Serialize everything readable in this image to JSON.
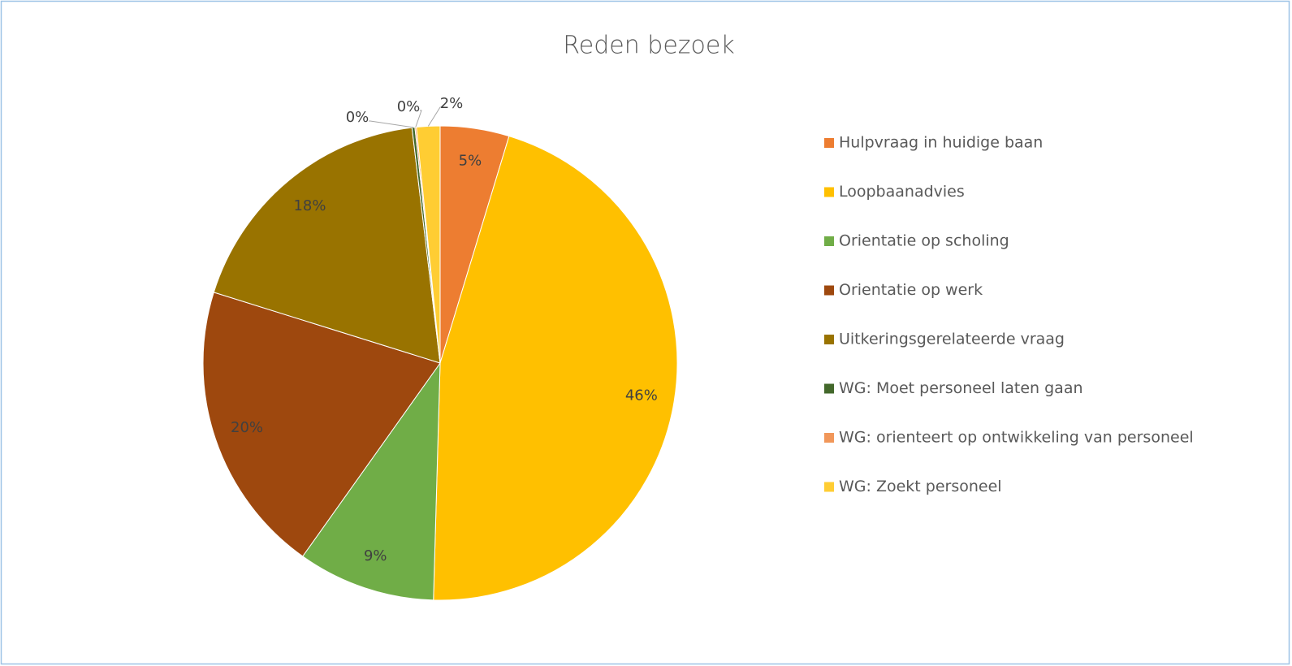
{
  "chart_data": {
    "type": "pie",
    "title": "Reden bezoek",
    "categories": [
      "Hulpvraag in huidige baan",
      "Loopbaanadvies",
      "Orientatie op scholing",
      "Orientatie op werk",
      "Uitkeringsgerelateerde vraag",
      "WG: Moet personeel laten gaan",
      "WG: orienteert op ontwikkeling van personeel",
      "WG: Zoekt personeel"
    ],
    "values": [
      4.7,
      45.8,
      9.4,
      20,
      18.3,
      0.2,
      0.1,
      1.6
    ],
    "value_labels": [
      "5%",
      "46%",
      "9%",
      "20%",
      "18%",
      "0%",
      "0%",
      "2%"
    ],
    "colors": [
      "#ed7d31",
      "#ffc000",
      "#70ad47",
      "#9e480e",
      "#997300",
      "#43682b",
      "#f1975a",
      "#ffcd33"
    ],
    "legend": "right"
  }
}
